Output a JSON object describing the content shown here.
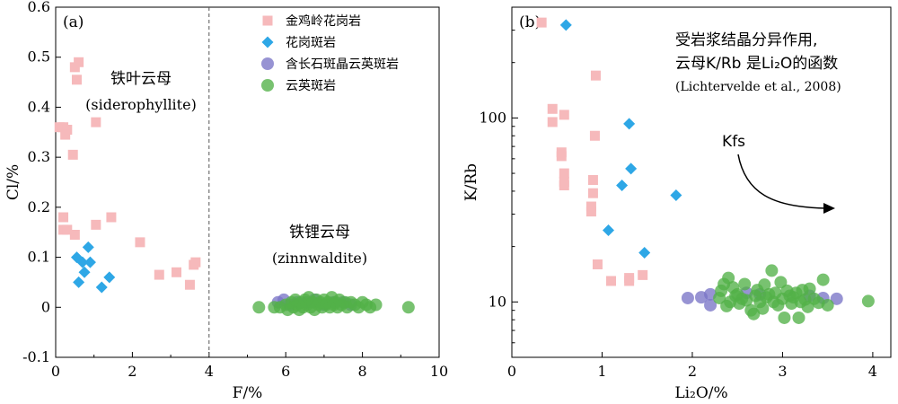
{
  "figure": {
    "colors": {
      "granite": "#f6b9bb",
      "granite_porphyry": "#2ea7e6",
      "felsic_porphyry": "#7a74c6",
      "greisen": "#52b148"
    },
    "legend": [
      "金鸡岭花岗岩",
      "花岗斑岩",
      "含长石斑晶云英斑岩",
      "云英斑岩"
    ]
  },
  "chart_data": [
    {
      "type": "scatter",
      "panel_label": "(a)",
      "xlabel": "F/%",
      "ylabel": "Cl/%",
      "xlim": [
        0,
        10
      ],
      "ylim": [
        -0.1,
        0.6
      ],
      "xticks": [
        "0",
        "2",
        "4",
        "6",
        "8",
        "10"
      ],
      "yticks": [
        "-0.1",
        "0",
        "0.1",
        "0.2",
        "0.3",
        "0.4",
        "0.5",
        "0.6"
      ],
      "grid": false,
      "legend_position": "top-right",
      "divider_x": 4,
      "annotations": {
        "siderophyllite_cn": "铁叶云母",
        "siderophyllite_en": "(siderophyllite)",
        "zinnwaldite_cn": "铁锂云母",
        "zinnwaldite_en": "(zinnwaldite)"
      },
      "series": [
        {
          "name": "金鸡岭花岗岩",
          "marker": "square",
          "points": [
            [
              0.1,
              0.36
            ],
            [
              0.2,
              0.36
            ],
            [
              0.3,
              0.355
            ],
            [
              0.25,
              0.345
            ],
            [
              0.5,
              0.48
            ],
            [
              0.6,
              0.49
            ],
            [
              0.55,
              0.455
            ],
            [
              0.45,
              0.305
            ],
            [
              1.05,
              0.37
            ],
            [
              0.2,
              0.18
            ],
            [
              0.2,
              0.155
            ],
            [
              0.3,
              0.155
            ],
            [
              0.5,
              0.145
            ],
            [
              1.05,
              0.165
            ],
            [
              1.45,
              0.18
            ],
            [
              2.2,
              0.13
            ],
            [
              2.7,
              0.065
            ],
            [
              3.15,
              0.07
            ],
            [
              3.5,
              0.045
            ],
            [
              3.6,
              0.085
            ],
            [
              3.65,
              0.09
            ]
          ]
        },
        {
          "name": "花岗斑岩",
          "marker": "diamond",
          "points": [
            [
              0.55,
              0.1
            ],
            [
              0.7,
              0.09
            ],
            [
              0.9,
              0.09
            ],
            [
              0.85,
              0.12
            ],
            [
              0.75,
              0.07
            ],
            [
              0.6,
              0.05
            ],
            [
              1.2,
              0.04
            ],
            [
              1.4,
              0.06
            ]
          ]
        },
        {
          "name": "含长石斑晶云英斑岩",
          "marker": "circle",
          "points": [
            [
              5.8,
              0.01
            ],
            [
              5.95,
              0.015
            ],
            [
              6.1,
              0.005
            ],
            [
              6.3,
              0.01
            ],
            [
              6.55,
              0.01
            ],
            [
              6.75,
              0.015
            ],
            [
              7.0,
              0.005
            ],
            [
              7.25,
              0.01
            ],
            [
              7.5,
              0.01
            ],
            [
              7.7,
              0.005
            ]
          ]
        },
        {
          "name": "云英斑岩",
          "marker": "circle",
          "points": [
            [
              5.3,
              0.0
            ],
            [
              5.7,
              0.0
            ],
            [
              5.85,
              0.0
            ],
            [
              6.0,
              0.005
            ],
            [
              6.05,
              -0.005
            ],
            [
              6.15,
              0.01
            ],
            [
              6.2,
              0.0
            ],
            [
              6.25,
              0.015
            ],
            [
              6.3,
              0.005
            ],
            [
              6.35,
              -0.005
            ],
            [
              6.4,
              0.01
            ],
            [
              6.45,
              0.0
            ],
            [
              6.5,
              0.015
            ],
            [
              6.55,
              0.005
            ],
            [
              6.6,
              0.02
            ],
            [
              6.65,
              0.0
            ],
            [
              6.7,
              0.01
            ],
            [
              6.75,
              -0.005
            ],
            [
              6.8,
              0.015
            ],
            [
              6.85,
              0.005
            ],
            [
              6.9,
              0.01
            ],
            [
              6.95,
              0.0
            ],
            [
              7.0,
              0.015
            ],
            [
              7.05,
              0.005
            ],
            [
              7.1,
              0.01
            ],
            [
              7.15,
              0.0
            ],
            [
              7.2,
              0.02
            ],
            [
              7.25,
              0.005
            ],
            [
              7.3,
              0.01
            ],
            [
              7.35,
              0.0
            ],
            [
              7.4,
              0.015
            ],
            [
              7.45,
              0.005
            ],
            [
              7.55,
              0.01
            ],
            [
              7.6,
              0.0
            ],
            [
              7.7,
              0.01
            ],
            [
              7.8,
              0.005
            ],
            [
              7.9,
              0.0
            ],
            [
              8.0,
              0.01
            ],
            [
              8.1,
              0.005
            ],
            [
              8.2,
              0.0
            ],
            [
              8.35,
              0.005
            ],
            [
              9.2,
              0.0
            ]
          ]
        }
      ]
    },
    {
      "type": "scatter",
      "panel_label": "(b)",
      "xlabel": "Li₂O/%",
      "ylabel": "K/Rb",
      "xlim": [
        0,
        4.2
      ],
      "ylim": [
        5,
        400
      ],
      "yscale": "log",
      "xticks": [
        "0",
        "1",
        "2",
        "3",
        "4"
      ],
      "yticks": [
        "10",
        "100"
      ],
      "grid": false,
      "annotations": {
        "note_line1": "受岩浆结晶分异作用,",
        "note_line2": "云母K/Rb 是Li₂O的函数",
        "note_line3": "(Lichtervelde et al., 2008)",
        "kfs": "Kfs"
      },
      "series": [
        {
          "name": "金鸡岭花岗岩",
          "marker": "square",
          "points": [
            [
              0.33,
              330
            ],
            [
              0.45,
              112
            ],
            [
              0.45,
              95
            ],
            [
              0.58,
              104
            ],
            [
              0.55,
              65
            ],
            [
              0.55,
              62
            ],
            [
              0.58,
              50
            ],
            [
              0.58,
              45
            ],
            [
              0.58,
              43
            ],
            [
              0.93,
              170
            ],
            [
              0.92,
              80
            ],
            [
              0.9,
              46
            ],
            [
              0.9,
              39
            ],
            [
              0.88,
              33
            ],
            [
              0.88,
              31
            ],
            [
              0.95,
              16
            ],
            [
              1.1,
              13
            ],
            [
              1.3,
              13.5
            ],
            [
              1.3,
              13
            ],
            [
              1.45,
              14
            ]
          ]
        },
        {
          "name": "花岗斑岩",
          "marker": "diamond",
          "points": [
            [
              0.6,
              320
            ],
            [
              1.3,
              93
            ],
            [
              1.32,
              53
            ],
            [
              1.22,
              43
            ],
            [
              1.82,
              38
            ],
            [
              1.07,
              24.5
            ],
            [
              1.47,
              18.5
            ]
          ]
        },
        {
          "name": "含长石斑晶云英斑岩",
          "marker": "circle",
          "points": [
            [
              1.95,
              10.5
            ],
            [
              2.1,
              10.6
            ],
            [
              2.2,
              11.0
            ],
            [
              2.2,
              9.6
            ],
            [
              2.6,
              11.2
            ],
            [
              2.75,
              11.0
            ],
            [
              3.3,
              10.8
            ],
            [
              3.45,
              10.5
            ],
            [
              3.6,
              10.4
            ]
          ]
        },
        {
          "name": "云英斑岩",
          "marker": "circle",
          "points": [
            [
              2.3,
              10.5
            ],
            [
              2.32,
              11.5
            ],
            [
              2.35,
              12.5
            ],
            [
              2.38,
              9.5
            ],
            [
              2.4,
              13.5
            ],
            [
              2.42,
              10.0
            ],
            [
              2.45,
              12.0
            ],
            [
              2.48,
              10.8
            ],
            [
              2.5,
              11.0
            ],
            [
              2.52,
              9.8
            ],
            [
              2.55,
              10.4
            ],
            [
              2.58,
              12.5
            ],
            [
              2.6,
              10.2
            ],
            [
              2.65,
              9.0
            ],
            [
              2.68,
              8.6
            ],
            [
              2.7,
              10.8
            ],
            [
              2.72,
              11.6
            ],
            [
              2.75,
              10.0
            ],
            [
              2.78,
              9.2
            ],
            [
              2.8,
              12.4
            ],
            [
              2.82,
              10.6
            ],
            [
              2.85,
              11.0
            ],
            [
              2.88,
              14.8
            ],
            [
              2.9,
              10.0
            ],
            [
              2.92,
              11.2
            ],
            [
              2.95,
              9.6
            ],
            [
              2.98,
              12.8
            ],
            [
              3.0,
              10.4
            ],
            [
              3.02,
              8.2
            ],
            [
              3.05,
              11.5
            ],
            [
              3.08,
              10.8
            ],
            [
              3.1,
              9.8
            ],
            [
              3.12,
              10.6
            ],
            [
              3.15,
              11.2
            ],
            [
              3.18,
              8.2
            ],
            [
              3.2,
              10.0
            ],
            [
              3.22,
              11.6
            ],
            [
              3.25,
              10.3
            ],
            [
              3.28,
              9.4
            ],
            [
              3.3,
              11.8
            ],
            [
              3.35,
              10.4
            ],
            [
              3.4,
              9.9
            ],
            [
              3.45,
              13.2
            ],
            [
              3.5,
              9.6
            ],
            [
              3.95,
              10.1
            ]
          ]
        }
      ]
    }
  ]
}
